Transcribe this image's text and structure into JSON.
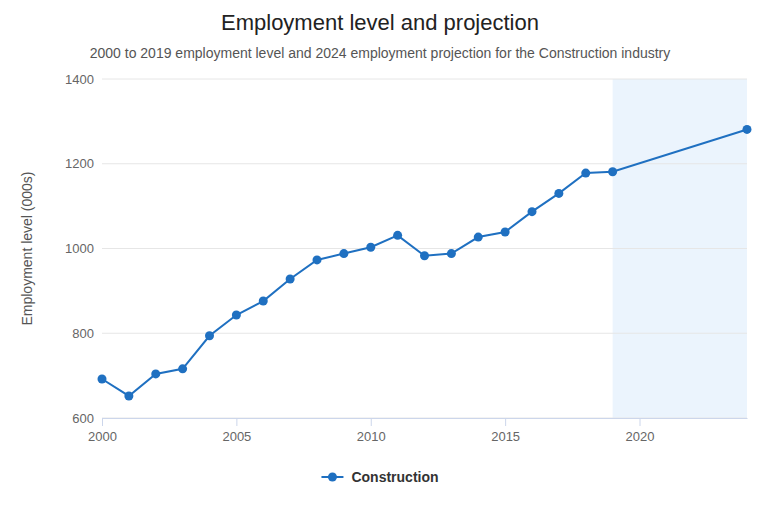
{
  "chart_data": {
    "type": "line",
    "title": "Employment level and projection",
    "subtitle": "2000 to 2019 employment level and 2024 employment projection for the Construction industry",
    "y_label": "Employment level (000s)",
    "x": [
      2000,
      2001,
      2002,
      2003,
      2004,
      2005,
      2006,
      2007,
      2008,
      2009,
      2010,
      2011,
      2012,
      2013,
      2014,
      2015,
      2016,
      2017,
      2018,
      2019,
      2024
    ],
    "series": [
      {
        "name": "Construction",
        "color": "#1f70c1",
        "marker": "circle",
        "values": [
          692,
          652,
          704,
          716,
          794,
          843,
          876,
          928,
          973,
          988,
          1003,
          1031,
          983,
          988,
          1027,
          1039,
          1087,
          1130,
          1178,
          1181,
          1281
        ]
      }
    ],
    "projection_range": [
      2019,
      2024
    ],
    "xlim": [
      2000,
      2024
    ],
    "xticks": [
      2000,
      2005,
      2010,
      2015,
      2020
    ],
    "ylim": [
      600,
      1400
    ],
    "yticks": [
      600,
      800,
      1000,
      1200,
      1400
    ],
    "grid": true,
    "legend": "bottom"
  }
}
